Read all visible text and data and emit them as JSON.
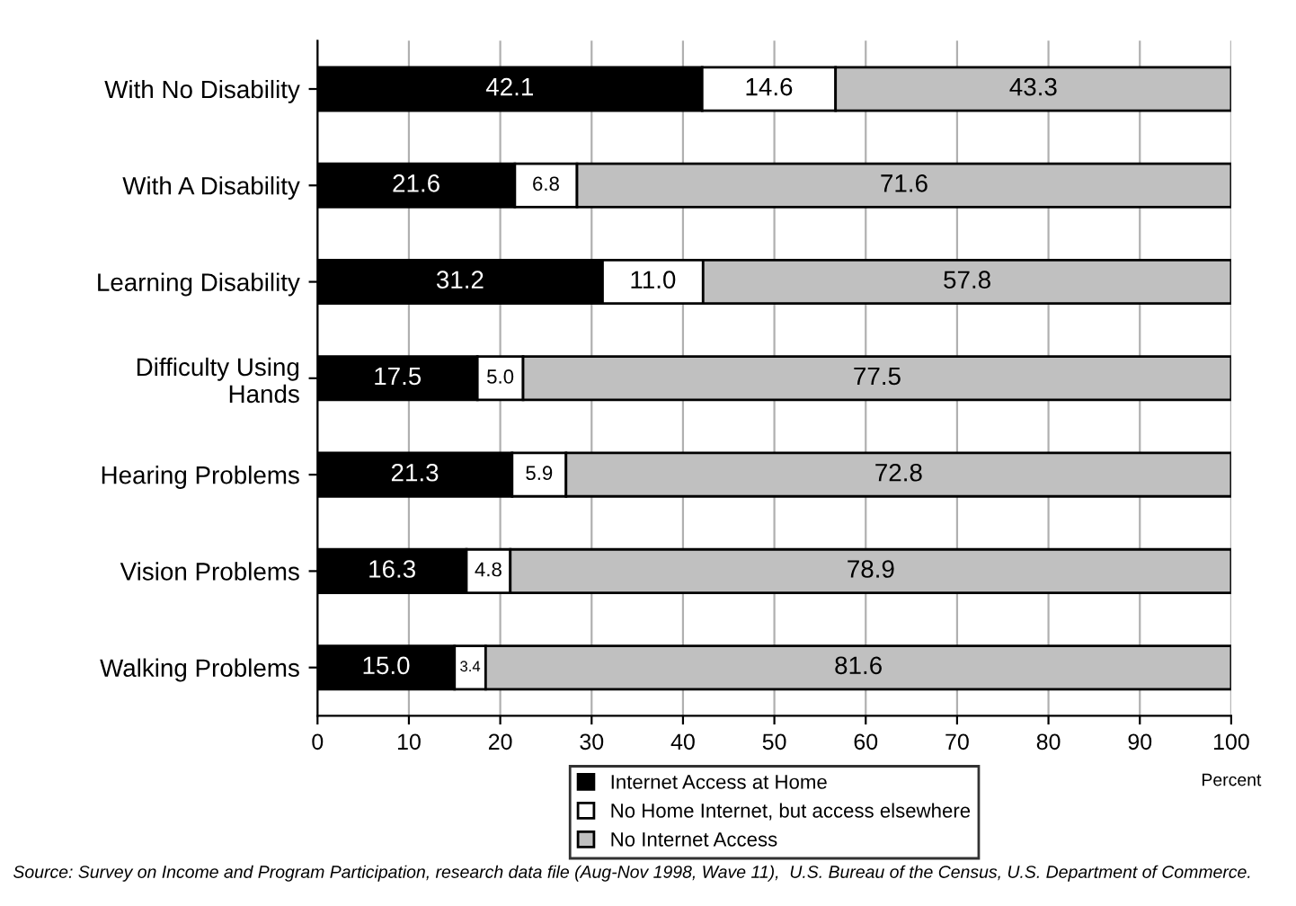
{
  "chart_data": {
    "type": "bar",
    "orientation": "horizontal",
    "stacked": true,
    "categories": [
      "With No Disability",
      "With A Disability",
      "Learning Disability",
      "Difficulty Using\nHands",
      "Hearing Problems",
      "Vision Problems",
      "Walking Problems"
    ],
    "series": [
      {
        "name": "Internet Access at Home",
        "color": "#000000",
        "values": [
          42.1,
          21.6,
          31.2,
          17.5,
          21.3,
          16.3,
          15
        ],
        "value_labels": [
          "42.1",
          "21.6",
          "31.2",
          "17.5",
          "21.3",
          "16.3",
          "15.0"
        ]
      },
      {
        "name": "No Home Internet, but access elsewhere",
        "color": "#ffffff",
        "values": [
          14.6,
          6.8,
          11,
          5,
          5.9,
          4.8,
          3.4
        ],
        "value_labels": [
          "14.6",
          "6.8",
          "11.0",
          "5.0",
          "5.9",
          "4.8",
          "3.4"
        ]
      },
      {
        "name": "No Internet Access",
        "color": "#c0c0c0",
        "values": [
          43.3,
          71.6,
          57.8,
          77.5,
          72.8,
          78.9,
          81.6
        ],
        "value_labels": [
          "43.3",
          "71.6",
          "57.8",
          "77.5",
          "72.8",
          "78.9",
          "81.6"
        ]
      }
    ],
    "xlim": [
      0,
      100
    ],
    "xticks": [
      0,
      10,
      20,
      30,
      40,
      50,
      60,
      70,
      80,
      90,
      100
    ],
    "xlabel": "Percent",
    "grid": "x",
    "legend": "bottom",
    "annotations": [
      "Source: Survey on Income and Program Participation, research data file (Aug-Nov 1998, Wave 11),  U.S. Bureau of the Census, U.S. Department of Commerce."
    ]
  }
}
